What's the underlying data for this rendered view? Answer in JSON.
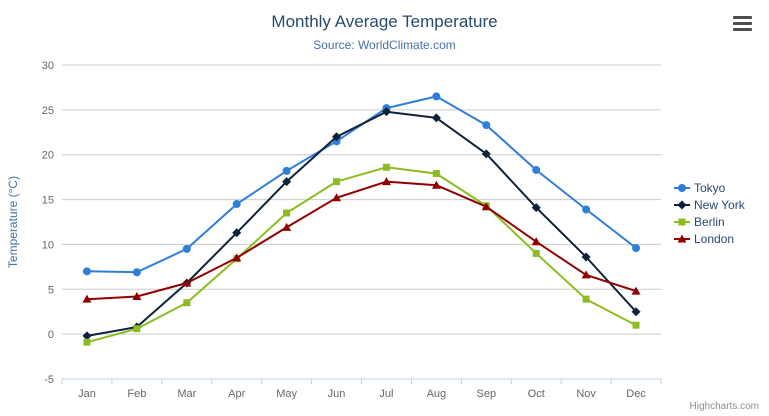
{
  "chart_data": {
    "type": "line",
    "title": "Monthly Average Temperature",
    "subtitle": "Source: WorldClimate.com",
    "xlabel": "",
    "ylabel": "Temperature (°C)",
    "ylim": [
      -5,
      30
    ],
    "yticks": [
      -5,
      0,
      5,
      10,
      15,
      20,
      25,
      30
    ],
    "grid": true,
    "legend_position": "right",
    "categories": [
      "Jan",
      "Feb",
      "Mar",
      "Apr",
      "May",
      "Jun",
      "Jul",
      "Aug",
      "Sep",
      "Oct",
      "Nov",
      "Dec"
    ],
    "series": [
      {
        "name": "Tokyo",
        "color": "#2f7ed8",
        "marker": "circle",
        "values": [
          7.0,
          6.9,
          9.5,
          14.5,
          18.2,
          21.5,
          25.2,
          26.5,
          23.3,
          18.3,
          13.9,
          9.6
        ]
      },
      {
        "name": "New York",
        "color": "#0d233a",
        "marker": "diamond",
        "values": [
          -0.2,
          0.8,
          5.7,
          11.3,
          17.0,
          22.0,
          24.8,
          24.1,
          20.1,
          14.1,
          8.6,
          2.5
        ]
      },
      {
        "name": "Berlin",
        "color": "#8bbc21",
        "marker": "square",
        "values": [
          -0.9,
          0.6,
          3.5,
          8.4,
          13.5,
          17.0,
          18.6,
          17.9,
          14.3,
          9.0,
          3.9,
          1.0
        ]
      },
      {
        "name": "London",
        "color": "#910000",
        "marker": "triangle",
        "values": [
          3.9,
          4.2,
          5.7,
          8.5,
          11.9,
          15.2,
          17.0,
          16.6,
          14.2,
          10.3,
          6.6,
          4.8
        ]
      }
    ]
  },
  "credits": {
    "label": "Highcharts.com"
  },
  "icons": {
    "export_menu": "hamburger-menu-icon"
  },
  "colors": {
    "title": "#274b6d",
    "subtitle": "#4572a7",
    "axis_label": "#666666",
    "axis_title": "#4572a7",
    "grid": "#cccccc",
    "axis_line": "#c0d0e0",
    "legend_text": "#274b6d",
    "credits": "#909090"
  }
}
